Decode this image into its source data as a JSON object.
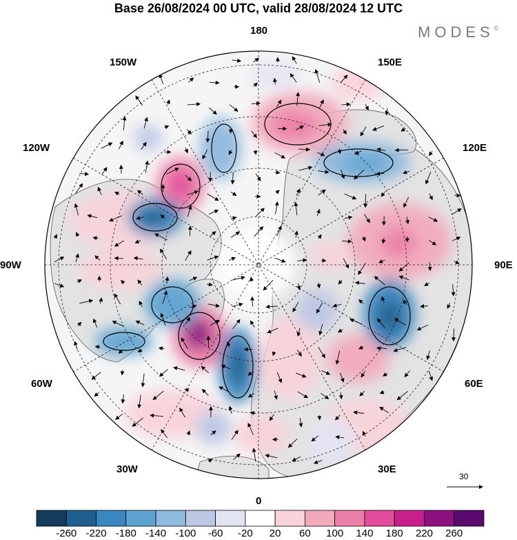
{
  "header": {
    "title": "Base 26/08/2024 00 UTC, valid 28/08/2024 12 UTC",
    "brand": "MODES",
    "brand_mark": "©"
  },
  "map": {
    "projection": "north-polar-stereographic",
    "longitude_labels": {
      "top": "180",
      "top_right": "150E",
      "right_upper": "120E",
      "right": "90E",
      "right_lower": "60E",
      "bottom_right": "30E",
      "bottom": "0",
      "bottom_left": "30W",
      "left_lower": "60W",
      "left": "90W",
      "left_upper": "120W",
      "top_left": "150W"
    },
    "colors": {
      "land": "#e3e3e3",
      "ocean": "#f5f5f5",
      "coast": "#555555"
    }
  },
  "reference_vector": {
    "value": "30"
  },
  "colorbar": {
    "ticks": [
      "-260",
      "-220",
      "-180",
      "-140",
      "-100",
      "-60",
      "-20",
      "20",
      "60",
      "100",
      "140",
      "180",
      "220",
      "260"
    ],
    "colors": [
      "#163c5d",
      "#1f5f8f",
      "#3a86bf",
      "#5ea4d2",
      "#8fb9de",
      "#bcc7e4",
      "#e3e4f2",
      "#ffffff",
      "#f8d3d9",
      "#f2aabb",
      "#ec7fa7",
      "#e24c9a",
      "#c71f8c",
      "#8e1080",
      "#5a0a6f"
    ]
  }
}
